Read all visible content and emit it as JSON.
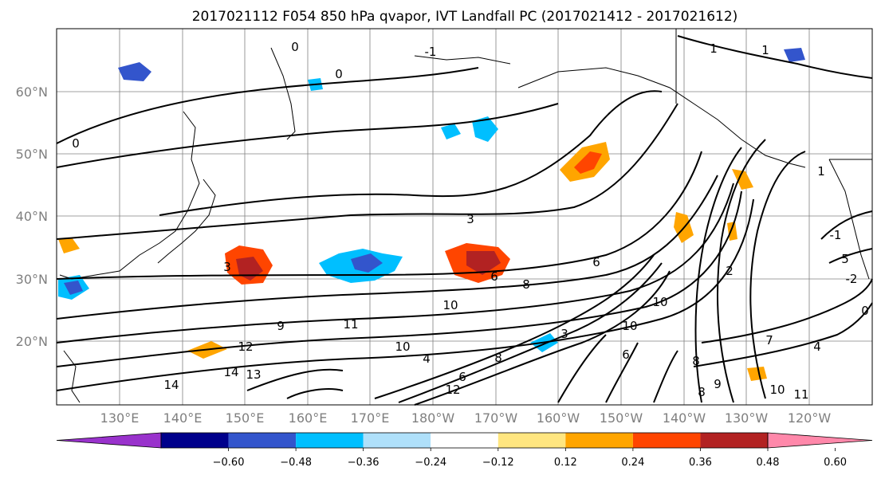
{
  "title": "2017021112 F054 850 hPa qvapor, IVT Landfall PC (2017021412 - 2017021612)",
  "map": {
    "lat_labels": [
      "60°N",
      "50°N",
      "40°N",
      "30°N",
      "20°N"
    ],
    "lon_labels": [
      "130°E",
      "140°E",
      "150°E",
      "160°E",
      "170°E",
      "180°W",
      "170°W",
      "160°W",
      "150°W",
      "140°W",
      "130°W",
      "120°W"
    ],
    "contour_labels": [
      "0",
      "0",
      "0",
      "-1",
      "1",
      "1",
      "-1",
      "1",
      "3",
      "3",
      "6",
      "6",
      "8",
      "10",
      "10",
      "9",
      "11",
      "12",
      "14",
      "13",
      "14",
      "10",
      "4",
      "12",
      "6",
      "8",
      "3",
      "10",
      "6",
      "8",
      "7",
      "8",
      "9",
      "10",
      "11",
      "4",
      "5",
      "2",
      "-2",
      "0"
    ]
  },
  "colorbar": {
    "ticks": [
      "−0.60",
      "−0.48",
      "−0.36",
      "−0.24",
      "−0.12",
      "0.12",
      "0.24",
      "0.36",
      "0.48",
      "0.60"
    ],
    "colors": [
      "#9932cc",
      "#00008b",
      "#3355cc",
      "#00bfff",
      "#afe0fa",
      "#ffffff",
      "#ffe680",
      "#ffa500",
      "#ff4500",
      "#b22222",
      "#ff88aa"
    ]
  },
  "chart_data": {
    "type": "contour",
    "variable_fill": "850 hPa qvapor",
    "variable_contour": "IVT Landfall PC",
    "fill_levels": [
      -0.6,
      -0.48,
      -0.36,
      -0.24,
      -0.12,
      0.12,
      0.24,
      0.36,
      0.48,
      0.6
    ],
    "lat_range": [
      10,
      70
    ],
    "lon_range": [
      120,
      250
    ],
    "grid": true
  }
}
